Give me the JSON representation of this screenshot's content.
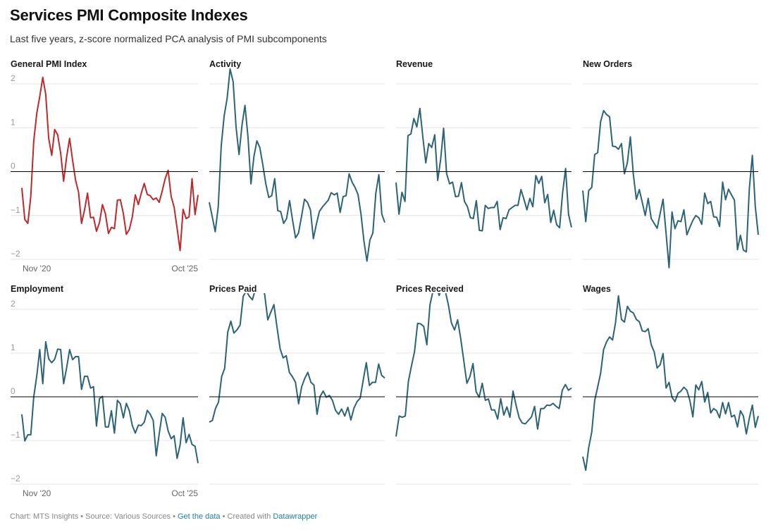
{
  "header": {
    "title": "Services PMI Composite Indexes",
    "subtitle": "Last five years, z-score normalized PCA analysis of PMI subcomponents"
  },
  "footer": {
    "chart_credit": "Chart: MTS Insights",
    "sep1": " • ",
    "source": "Source: Various Sources",
    "sep2": " • ",
    "get_data": "Get the data",
    "sep3": " • ",
    "created_with": "Created with ",
    "datawrapper": "Datawrapper"
  },
  "colors": {
    "highlight": "#c0282a",
    "series": "#2b6378",
    "zero_line": "#000000",
    "grid": "#e4e4e4"
  },
  "chart_data": {
    "type": "line",
    "layout": "small-multiples",
    "title": "Services PMI Composite Indexes",
    "subtitle": "Last five years, z-score normalized PCA analysis of PMI subcomponents",
    "xlabel": "",
    "ylabel": "",
    "ylim": [
      -2,
      2
    ],
    "yticks": [
      "2",
      "1",
      "0",
      "−1",
      "−2"
    ],
    "ytick_values": [
      2,
      1,
      0,
      -1,
      -2
    ],
    "x_start_label": "Nov '20",
    "x_end_label": "Oct '25",
    "grid": true,
    "panels": [
      {
        "name": "General PMI Index",
        "highlight": true,
        "values": [
          -0.37,
          -1.09,
          -1.18,
          -0.56,
          0.7,
          1.33,
          1.71,
          2.15,
          1.76,
          0.76,
          0.37,
          0.96,
          0.84,
          0.42,
          -0.22,
          0.34,
          0.76,
          0.26,
          -0.2,
          -0.47,
          -1.18,
          -0.87,
          -0.49,
          -1.05,
          -1.04,
          -1.36,
          -1.16,
          -0.75,
          -0.96,
          -1.41,
          -1.27,
          -1.3,
          -0.65,
          -0.64,
          -0.96,
          -1.43,
          -1.32,
          -1.03,
          -0.53,
          -0.75,
          -0.49,
          -0.27,
          -0.52,
          -0.55,
          -0.64,
          -0.6,
          -0.7,
          -0.44,
          -0.16,
          0.03,
          -0.57,
          -0.81,
          -1.29,
          -1.8,
          -0.86,
          -1.07,
          -1.03,
          -0.16,
          -0.98,
          -0.53
        ]
      },
      {
        "name": "Activity",
        "highlight": false,
        "values": [
          -0.7,
          -1.03,
          -1.37,
          -0.8,
          0.58,
          1.27,
          1.67,
          2.34,
          2.05,
          1.01,
          0.39,
          1.06,
          1.51,
          0.79,
          -0.28,
          0.34,
          0.7,
          0.55,
          0.15,
          -0.28,
          -0.59,
          -0.55,
          -0.16,
          -0.89,
          -0.91,
          -1.18,
          -1.07,
          -0.66,
          -1.11,
          -1.51,
          -1.4,
          -1.03,
          -0.63,
          -0.7,
          -0.87,
          -1.53,
          -1.2,
          -0.91,
          -0.81,
          -0.73,
          -0.65,
          -0.48,
          -0.53,
          -0.49,
          -0.93,
          -0.57,
          -0.55,
          -0.05,
          -0.24,
          -0.36,
          -0.52,
          -0.96,
          -1.59,
          -2.04,
          -1.56,
          -1.4,
          -0.49,
          -0.07,
          -0.97,
          -1.16
        ]
      },
      {
        "name": "Revenue",
        "highlight": false,
        "values": [
          -0.25,
          -0.97,
          -0.47,
          -0.68,
          0.82,
          0.86,
          1.21,
          1.02,
          1.44,
          0.79,
          0.2,
          0.64,
          0.55,
          0.84,
          -0.2,
          0.28,
          0.99,
          -0.04,
          -0.28,
          -0.24,
          -0.57,
          -0.56,
          -0.25,
          -0.68,
          -0.8,
          -1.05,
          -1.07,
          -0.66,
          -1.34,
          -1.35,
          -0.77,
          -0.84,
          -0.82,
          -0.82,
          -0.68,
          -1.32,
          -1.05,
          -1.07,
          -0.87,
          -0.82,
          -0.77,
          -0.77,
          -0.41,
          -0.63,
          -0.87,
          -0.61,
          -0.8,
          -0.09,
          -0.27,
          -0.11,
          -0.71,
          -0.52,
          -1.16,
          -0.88,
          -1.21,
          -1.28,
          -0.49,
          0.07,
          -0.98,
          -1.27
        ]
      },
      {
        "name": "New Orders",
        "highlight": false,
        "values": [
          -0.43,
          -1.14,
          -0.43,
          -0.36,
          0.39,
          0.43,
          1.14,
          1.39,
          1.3,
          1.25,
          0.58,
          0.57,
          0.51,
          0.64,
          -0.05,
          0.21,
          0.79,
          -0.06,
          -0.63,
          -0.41,
          -0.7,
          -1.0,
          -0.61,
          -1.07,
          -1.18,
          -1.29,
          -0.96,
          -0.63,
          -1.41,
          -2.19,
          -0.92,
          -1.3,
          -1.12,
          -1.14,
          -0.87,
          -1.44,
          -1.27,
          -1.11,
          -1.0,
          -1.05,
          -1.2,
          -0.49,
          -0.73,
          -0.68,
          -1.03,
          -1.04,
          -1.25,
          -0.24,
          -0.64,
          -0.4,
          -0.53,
          -0.65,
          -1.78,
          -1.45,
          -1.79,
          -1.83,
          -0.39,
          0.37,
          -0.8,
          -1.44
        ]
      },
      {
        "name": "Employment",
        "highlight": false,
        "values": [
          -0.4,
          -1.01,
          -0.87,
          -0.87,
          0.0,
          0.48,
          1.08,
          0.3,
          1.26,
          0.87,
          0.78,
          0.86,
          1.09,
          1.08,
          0.3,
          0.67,
          1.08,
          0.85,
          0.92,
          0.92,
          0.17,
          0.47,
          0.47,
          0.2,
          0.23,
          -0.67,
          -0.04,
          0.01,
          -0.69,
          -0.69,
          -0.32,
          -0.83,
          -0.08,
          -0.16,
          -0.48,
          -0.15,
          -0.32,
          -0.66,
          -0.83,
          -0.65,
          -0.66,
          -0.58,
          -0.31,
          -0.4,
          -0.54,
          -1.35,
          -0.85,
          -0.38,
          -0.47,
          -0.78,
          -0.96,
          -0.89,
          -1.41,
          -1.1,
          -0.48,
          -1.05,
          -0.86,
          -1.09,
          -1.13,
          -1.52
        ]
      },
      {
        "name": "Prices Paid",
        "highlight": false,
        "values": [
          -0.58,
          -0.54,
          -0.27,
          -0.12,
          0.46,
          0.65,
          1.48,
          1.73,
          1.46,
          1.53,
          1.64,
          2.3,
          2.42,
          2.3,
          2.22,
          2.47,
          2.58,
          2.58,
          2.34,
          1.76,
          1.94,
          2.11,
          1.59,
          1.1,
          0.89,
          0.94,
          0.56,
          0.46,
          0.33,
          -0.16,
          0.23,
          0.42,
          0.56,
          0.33,
          0.27,
          -0.4,
          0.01,
          0.13,
          -0.01,
          0.03,
          -0.08,
          -0.31,
          -0.4,
          -0.28,
          -0.44,
          -0.24,
          -0.53,
          -0.26,
          -0.11,
          -0.03,
          0.38,
          0.78,
          0.26,
          0.33,
          0.33,
          0.75,
          0.49,
          0.43
        ]
      },
      {
        "name": "Prices Received",
        "highlight": false,
        "values": [
          -0.91,
          -0.44,
          -0.47,
          -0.44,
          0.35,
          0.7,
          1.03,
          1.68,
          1.67,
          1.61,
          1.19,
          2.1,
          2.42,
          2.53,
          2.32,
          2.53,
          2.42,
          2.1,
          1.69,
          1.53,
          1.76,
          1.34,
          0.83,
          0.31,
          0.46,
          0.76,
          0.12,
          -0.01,
          0.31,
          -0.08,
          -0.05,
          -0.3,
          -0.3,
          -0.51,
          -0.04,
          -0.42,
          -0.23,
          -0.47,
          0.13,
          -0.2,
          -0.48,
          -0.6,
          -0.62,
          -0.54,
          -0.46,
          -0.22,
          -0.74,
          -0.27,
          -0.27,
          -0.19,
          -0.2,
          -0.15,
          -0.22,
          -0.27,
          0.15,
          0.28,
          0.15,
          0.2
        ]
      },
      {
        "name": "Wages",
        "highlight": false,
        "values": [
          -1.37,
          -1.68,
          -1.16,
          -0.81,
          -0.08,
          0.22,
          0.54,
          1.08,
          1.26,
          1.37,
          1.3,
          1.69,
          2.31,
          1.77,
          1.71,
          2.07,
          1.96,
          1.92,
          1.77,
          1.72,
          1.51,
          1.49,
          1.56,
          1.19,
          1.03,
          0.66,
          0.73,
          0.99,
          0.2,
          0.33,
          -0.01,
          -0.11,
          0.08,
          0.13,
          0.22,
          0.15,
          -0.08,
          -0.46,
          0.27,
          0.16,
          0.35,
          -0.12,
          0.1,
          -0.37,
          -0.27,
          -0.32,
          -0.48,
          -0.13,
          -0.39,
          -0.13,
          -0.46,
          -0.42,
          -0.69,
          -0.32,
          -0.44,
          -0.85,
          -0.49,
          -0.19,
          -0.7,
          -0.44
        ]
      }
    ]
  }
}
